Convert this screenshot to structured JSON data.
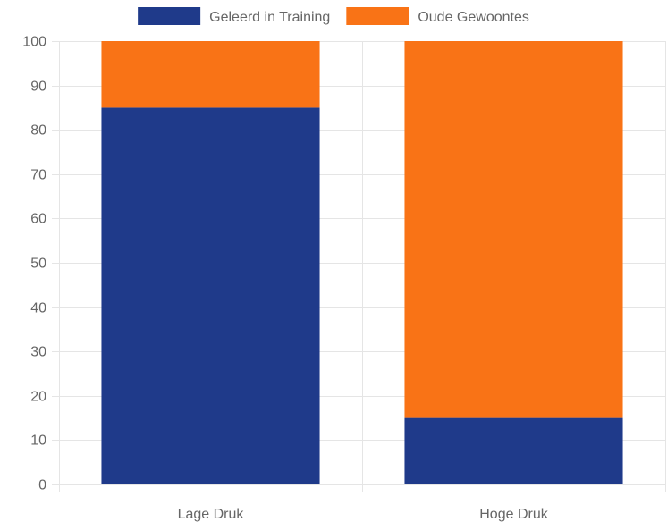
{
  "chart_data": {
    "type": "bar",
    "stacked": true,
    "categories": [
      "Lage Druk",
      "Hoge Druk"
    ],
    "series": [
      {
        "name": "Geleerd in Training",
        "values": [
          85,
          15
        ],
        "color": "#1f3a8a"
      },
      {
        "name": "Oude Gewoontes",
        "values": [
          15,
          85
        ],
        "color": "#f97316"
      }
    ],
    "ylim": [
      0,
      100
    ],
    "yticks": [
      0,
      10,
      20,
      30,
      40,
      50,
      60,
      70,
      80,
      90,
      100
    ],
    "grid": true,
    "legend_position": "top-center",
    "title": "",
    "xlabel": "",
    "ylabel": ""
  }
}
